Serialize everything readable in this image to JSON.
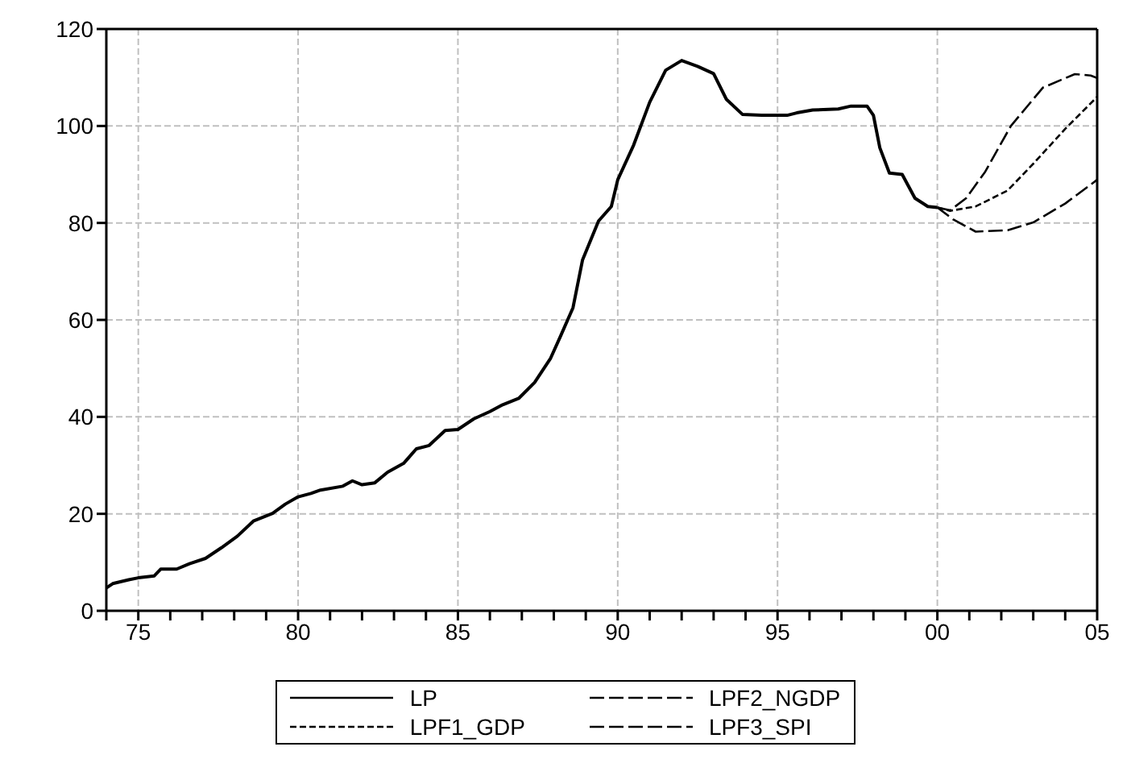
{
  "chart_data": {
    "type": "line",
    "xlim": [
      1974,
      2005
    ],
    "ylim": [
      0,
      120
    ],
    "yticks": [
      0,
      20,
      40,
      60,
      80,
      100,
      120
    ],
    "xticks": [
      {
        "value": 1974,
        "label": null
      },
      {
        "value": 1975,
        "label": "75"
      },
      {
        "value": 1976,
        "label": null
      },
      {
        "value": 1977,
        "label": null
      },
      {
        "value": 1978,
        "label": null
      },
      {
        "value": 1979,
        "label": null
      },
      {
        "value": 1980,
        "label": "80"
      },
      {
        "value": 1981,
        "label": null
      },
      {
        "value": 1982,
        "label": null
      },
      {
        "value": 1983,
        "label": null
      },
      {
        "value": 1984,
        "label": null
      },
      {
        "value": 1985,
        "label": "85"
      },
      {
        "value": 1986,
        "label": null
      },
      {
        "value": 1987,
        "label": null
      },
      {
        "value": 1988,
        "label": null
      },
      {
        "value": 1989,
        "label": null
      },
      {
        "value": 1990,
        "label": "90"
      },
      {
        "value": 1991,
        "label": null
      },
      {
        "value": 1992,
        "label": null
      },
      {
        "value": 1993,
        "label": null
      },
      {
        "value": 1994,
        "label": null
      },
      {
        "value": 1995,
        "label": "95"
      },
      {
        "value": 1996,
        "label": null
      },
      {
        "value": 1997,
        "label": null
      },
      {
        "value": 1998,
        "label": null
      },
      {
        "value": 1999,
        "label": null
      },
      {
        "value": 2000,
        "label": "00"
      },
      {
        "value": 2001,
        "label": null
      },
      {
        "value": 2002,
        "label": null
      },
      {
        "value": 2003,
        "label": null
      },
      {
        "value": 2004,
        "label": null
      },
      {
        "value": 2005,
        "label": "05"
      }
    ],
    "grid": true,
    "legend": "bottom",
    "marker": "none",
    "series": [
      {
        "name": "LP",
        "color": "#000000",
        "line_style": "solid",
        "x": [
          1974.0,
          1974.2,
          1974.7,
          1975.0,
          1975.5,
          1975.7,
          1976.2,
          1976.6,
          1977.1,
          1977.6,
          1978.1,
          1978.6,
          1979.2,
          1979.6,
          1980.0,
          1980.4,
          1980.7,
          1981.4,
          1981.7,
          1982.0,
          1982.4,
          1982.8,
          1983.3,
          1983.7,
          1984.1,
          1984.6,
          1985.0,
          1985.5,
          1986.0,
          1986.4,
          1986.9,
          1987.4,
          1987.9,
          1988.2,
          1988.6,
          1988.9,
          1989.4,
          1989.8,
          1990.0,
          1990.5,
          1991.0,
          1991.5,
          1992.0,
          1992.5,
          1993.0,
          1993.4,
          1993.9,
          1994.5,
          1995.3,
          1995.6,
          1996.1,
          1996.9,
          1997.3,
          1997.8,
          1998.0,
          1998.2,
          1998.5,
          1998.9,
          1999.3,
          1999.7,
          2000.0
        ],
        "values": [
          4.7,
          5.6,
          6.4,
          6.8,
          7.2,
          8.6,
          8.6,
          9.7,
          10.8,
          13,
          15.4,
          18.5,
          20.1,
          22,
          23.5,
          24.2,
          24.9,
          25.7,
          26.8,
          26,
          26.4,
          28.6,
          30.4,
          33.4,
          34.1,
          37.2,
          37.4,
          39.6,
          41.1,
          42.5,
          43.8,
          47.1,
          52.1,
          56.5,
          62.5,
          72.4,
          80.4,
          83.4,
          88.9,
          96.1,
          104.9,
          111.5,
          113.5,
          112.3,
          110.8,
          105.5,
          102.4,
          102.2,
          102.2,
          102.7,
          103.3,
          103.5,
          104.1,
          104.1,
          102.2,
          95.5,
          90.3,
          90,
          85.1,
          83.4,
          83.2
        ]
      },
      {
        "name": "LPF1_GDP",
        "color": "#000000",
        "line_style": "dotted",
        "x": [
          2000.0,
          2000.4,
          2001.2,
          2002.2,
          2003.0,
          2004.0,
          2005.0
        ],
        "values": [
          83.2,
          82.5,
          83.4,
          86.7,
          92.2,
          99.4,
          106
        ]
      },
      {
        "name": "LPF2_NGDP",
        "color": "#000000",
        "line_style": "dashed",
        "x": [
          2000.0,
          2000.4,
          2000.9,
          2001.5,
          2002.3,
          2003.3,
          2004.3,
          2004.8,
          2005.0
        ],
        "values": [
          83.2,
          82.6,
          85.1,
          90.6,
          100,
          107.9,
          110.7,
          110.4,
          109.9
        ]
      },
      {
        "name": "LPF3_SPI",
        "color": "#000000",
        "line_style": "dashed",
        "x": [
          2000.0,
          2000.5,
          2001.2,
          2002.2,
          2003.0,
          2004.0,
          2005.0
        ],
        "values": [
          83.2,
          80.7,
          78.2,
          78.5,
          80.1,
          84,
          88.9
        ]
      }
    ]
  }
}
